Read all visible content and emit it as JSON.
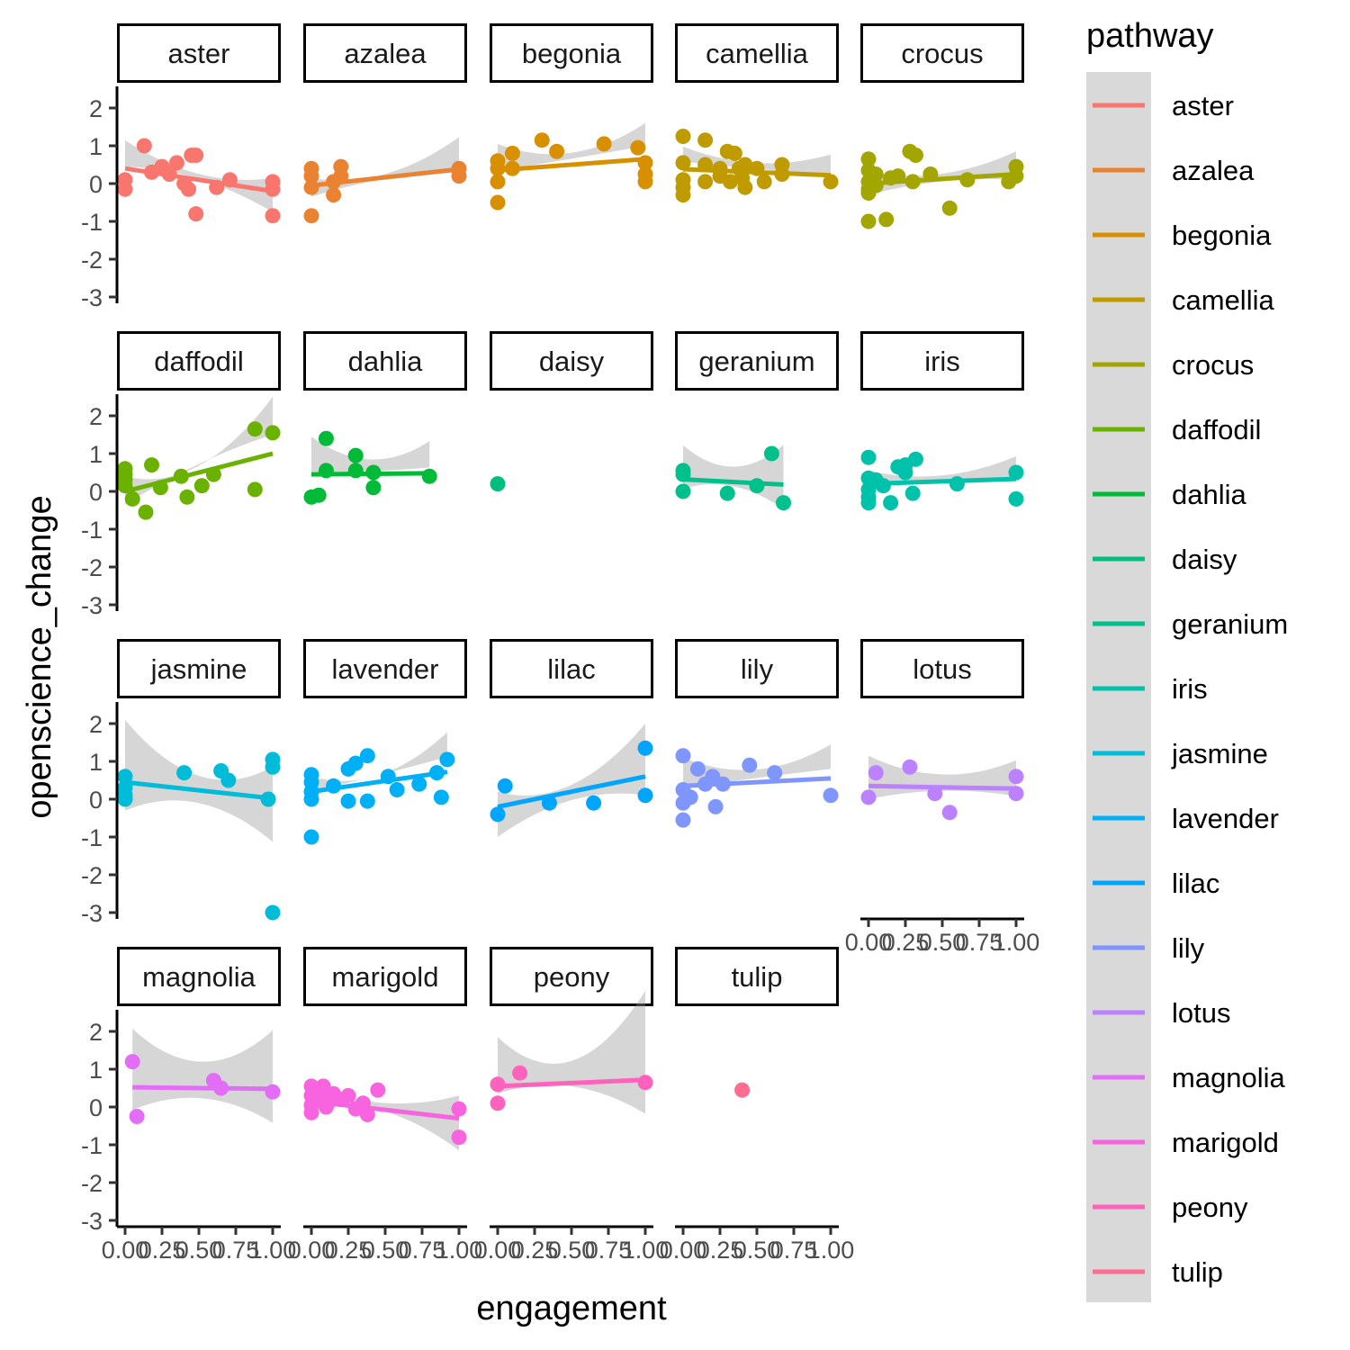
{
  "chart_data": {
    "type": "scatter",
    "facet_by": "pathway",
    "xlabel": "engagement",
    "ylabel": "openscience_change",
    "xlim": [
      0,
      1
    ],
    "ylim": [
      -3,
      2.5
    ],
    "x_ticks": [
      "0.00",
      "0.25",
      "0.50",
      "0.75",
      "1.00"
    ],
    "y_ticks": [
      "-3",
      "-2",
      "-1",
      "0",
      "1",
      "2"
    ],
    "grid": false,
    "smooth": "lm with confidence band",
    "legend": {
      "title": "pathway",
      "position": "right"
    },
    "panels": [
      {
        "name": "aster",
        "color": "#F8766D",
        "points": [
          [
            0,
            0.1
          ],
          [
            0,
            -0.15
          ],
          [
            0.13,
            1.0
          ],
          [
            0.18,
            0.3
          ],
          [
            0.25,
            0.45
          ],
          [
            0.3,
            0.25
          ],
          [
            0.35,
            0.55
          ],
          [
            0.4,
            0.0
          ],
          [
            0.43,
            -0.15
          ],
          [
            0.45,
            0.75
          ],
          [
            0.48,
            0.75
          ],
          [
            0.48,
            -0.8
          ],
          [
            0.62,
            -0.1
          ],
          [
            0.71,
            0.1
          ],
          [
            1.0,
            0.05
          ],
          [
            1.0,
            -0.15
          ],
          [
            1.0,
            -0.85
          ]
        ],
        "fit": [
          0.4,
          -0.2
        ],
        "band": [
          [
            0.75,
            0.05
          ],
          [
            0.35,
            -0.55
          ]
        ]
      },
      {
        "name": "azalea",
        "color": "#EA8331",
        "points": [
          [
            0,
            0.4
          ],
          [
            0,
            0.2
          ],
          [
            0,
            -0.1
          ],
          [
            0,
            -0.85
          ],
          [
            0.15,
            0.05
          ],
          [
            0.15,
            -0.3
          ],
          [
            0.2,
            0.2
          ],
          [
            0.2,
            0.45
          ],
          [
            1.0,
            0.4
          ],
          [
            1.0,
            0.2
          ]
        ],
        "fit": [
          -0.05,
          0.38
        ],
        "band": [
          [
            0.2,
            -0.3
          ],
          [
            0.85,
            -0.1
          ]
        ]
      },
      {
        "name": "begonia",
        "color": "#D89000",
        "points": [
          [
            0,
            0.6
          ],
          [
            0,
            0.4
          ],
          [
            0,
            0.05
          ],
          [
            0,
            -0.5
          ],
          [
            0.1,
            0.8
          ],
          [
            0.1,
            0.4
          ],
          [
            0.3,
            1.15
          ],
          [
            0.4,
            0.85
          ],
          [
            0.72,
            1.05
          ],
          [
            0.95,
            0.95
          ],
          [
            1.0,
            0.55
          ],
          [
            1.0,
            0.25
          ],
          [
            1.0,
            0.05
          ]
        ],
        "fit": [
          0.35,
          0.65
        ],
        "band": [
          [
            0.7,
            0.0
          ],
          [
            0.95,
            0.35
          ]
        ]
      },
      {
        "name": "camellia",
        "color": "#C09B00",
        "points": [
          [
            0,
            1.25
          ],
          [
            0,
            0.55
          ],
          [
            0,
            0.1
          ],
          [
            0,
            -0.1
          ],
          [
            0,
            -0.3
          ],
          [
            0.15,
            1.15
          ],
          [
            0.15,
            0.5
          ],
          [
            0.15,
            0.05
          ],
          [
            0.25,
            0.4
          ],
          [
            0.25,
            0.2
          ],
          [
            0.3,
            0.85
          ],
          [
            0.32,
            0.05
          ],
          [
            0.35,
            0.8
          ],
          [
            0.38,
            0.4
          ],
          [
            0.4,
            0.15
          ],
          [
            0.42,
            0.5
          ],
          [
            0.42,
            -0.1
          ],
          [
            0.5,
            0.4
          ],
          [
            0.55,
            0.05
          ],
          [
            0.67,
            0.5
          ],
          [
            0.67,
            0.25
          ],
          [
            1.0,
            0.05
          ]
        ],
        "fit": [
          0.38,
          0.22
        ],
        "band": [
          [
            0.6,
            0.2
          ],
          [
            0.55,
            0.0
          ]
        ]
      },
      {
        "name": "crocus",
        "color": "#A3A500",
        "points": [
          [
            0,
            0.65
          ],
          [
            0,
            0.35
          ],
          [
            0,
            0.05
          ],
          [
            0,
            -0.15
          ],
          [
            0,
            -0.25
          ],
          [
            0,
            -1.0
          ],
          [
            0.05,
            -0.05
          ],
          [
            0.05,
            0.25
          ],
          [
            0.12,
            -0.95
          ],
          [
            0.15,
            0.15
          ],
          [
            0.2,
            0.2
          ],
          [
            0.28,
            0.85
          ],
          [
            0.32,
            0.75
          ],
          [
            0.3,
            0.05
          ],
          [
            0.42,
            0.25
          ],
          [
            0.55,
            -0.65
          ],
          [
            0.67,
            0.1
          ],
          [
            0.95,
            0.05
          ],
          [
            1.0,
            0.45
          ],
          [
            1.0,
            0.2
          ]
        ],
        "fit": [
          0.0,
          0.25
        ],
        "band": [
          [
            0.3,
            -0.3
          ],
          [
            0.6,
            -0.15
          ]
        ]
      },
      {
        "name": "daffodil",
        "color": "#6BB100",
        "points": [
          [
            0,
            0.6
          ],
          [
            0,
            0.45
          ],
          [
            0,
            0.3
          ],
          [
            0,
            0.15
          ],
          [
            0.05,
            -0.2
          ],
          [
            0.14,
            -0.55
          ],
          [
            0.18,
            0.7
          ],
          [
            0.24,
            0.1
          ],
          [
            0.38,
            0.4
          ],
          [
            0.42,
            -0.15
          ],
          [
            0.52,
            0.15
          ],
          [
            0.6,
            0.45
          ],
          [
            0.88,
            1.65
          ],
          [
            0.88,
            0.05
          ],
          [
            1.0,
            1.55
          ]
        ],
        "fit": [
          0.0,
          1.0
        ],
        "band": [
          [
            0.4,
            -0.35
          ],
          [
            1.5,
            0.5
          ]
        ]
      },
      {
        "name": "dahlia",
        "color": "#00BA38",
        "points": [
          [
            0,
            -0.15
          ],
          [
            0.05,
            -0.1
          ],
          [
            0.1,
            1.4
          ],
          [
            0.1,
            0.55
          ],
          [
            0.3,
            0.95
          ],
          [
            0.3,
            0.55
          ],
          [
            0.42,
            0.1
          ],
          [
            0.42,
            0.5
          ],
          [
            0.8,
            0.4
          ]
        ],
        "fit": [
          0.45,
          0.48
        ],
        "band": [
          [
            1.0,
            0.05
          ],
          [
            0.85,
            0.15
          ]
        ],
        "x_end": 0.8
      },
      {
        "name": "daisy",
        "color": "#00BF7D",
        "points": [
          [
            0,
            0.2
          ]
        ]
      },
      {
        "name": "geranium",
        "color": "#00C08B",
        "points": [
          [
            0,
            0.55
          ],
          [
            0,
            0.45
          ],
          [
            0,
            0.0
          ],
          [
            0.3,
            -0.05
          ],
          [
            0.5,
            0.15
          ],
          [
            0.6,
            1.0
          ],
          [
            0.68,
            -0.3
          ]
        ],
        "fit": [
          0.32,
          0.18
        ],
        "band": [
          [
            0.9,
            -0.25
          ],
          [
            1.05,
            -0.65
          ]
        ],
        "x_end": 0.68
      },
      {
        "name": "iris",
        "color": "#00C1AA",
        "points": [
          [
            0,
            0.9
          ],
          [
            0,
            0.35
          ],
          [
            0,
            0.05
          ],
          [
            0,
            -0.15
          ],
          [
            0,
            -0.3
          ],
          [
            0.05,
            0.3
          ],
          [
            0.1,
            0.15
          ],
          [
            0.15,
            -0.3
          ],
          [
            0.2,
            0.65
          ],
          [
            0.25,
            0.7
          ],
          [
            0.25,
            0.5
          ],
          [
            0.3,
            -0.05
          ],
          [
            0.32,
            0.85
          ],
          [
            0.6,
            0.2
          ],
          [
            1.0,
            0.5
          ],
          [
            1.0,
            -0.2
          ]
        ],
        "fit": [
          0.2,
          0.33
        ],
        "band": [
          [
            0.35,
            0.05
          ],
          [
            0.6,
            0.05
          ]
        ]
      },
      {
        "name": "jasmine",
        "color": "#00BCD8",
        "points": [
          [
            0,
            0.6
          ],
          [
            0,
            0.3
          ],
          [
            0,
            0.1
          ],
          [
            0,
            0.0
          ],
          [
            0.4,
            0.7
          ],
          [
            0.65,
            0.75
          ],
          [
            0.7,
            0.5
          ],
          [
            0.97,
            0.0
          ],
          [
            1.0,
            1.05
          ],
          [
            1.0,
            0.85
          ],
          [
            1.0,
            -3.0
          ]
        ],
        "fit": [
          0.45,
          0.02
        ],
        "band": [
          [
            1.65,
            -0.75
          ],
          [
            0.85,
            -1.15
          ]
        ]
      },
      {
        "name": "lavender",
        "color": "#00B0F6",
        "points": [
          [
            0,
            0.65
          ],
          [
            0,
            0.45
          ],
          [
            0,
            0.2
          ],
          [
            0,
            0.0
          ],
          [
            0,
            -1.0
          ],
          [
            0.15,
            0.35
          ],
          [
            0.25,
            0.8
          ],
          [
            0.25,
            -0.05
          ],
          [
            0.3,
            0.95
          ],
          [
            0.38,
            1.15
          ],
          [
            0.38,
            -0.05
          ],
          [
            0.52,
            0.6
          ],
          [
            0.58,
            0.25
          ],
          [
            0.73,
            0.4
          ],
          [
            0.85,
            0.7
          ],
          [
            0.88,
            0.05
          ],
          [
            0.92,
            1.05
          ]
        ],
        "fit": [
          0.2,
          0.72
        ],
        "band": [
          [
            0.4,
            0.0
          ],
          [
            1.05,
            0.4
          ]
        ],
        "x_end": 0.92
      },
      {
        "name": "lilac",
        "color": "#00A5FF",
        "points": [
          [
            0,
            -0.4
          ],
          [
            0.05,
            0.35
          ],
          [
            0.35,
            -0.1
          ],
          [
            0.65,
            -0.1
          ],
          [
            1.0,
            1.35
          ],
          [
            1.0,
            0.1
          ]
        ],
        "fit": [
          -0.2,
          0.6
        ],
        "band": [
          [
            0.4,
            -0.8
          ],
          [
            1.4,
            -0.5
          ]
        ]
      },
      {
        "name": "lily",
        "color": "#7F96FF",
        "points": [
          [
            0,
            1.15
          ],
          [
            0,
            0.25
          ],
          [
            0,
            -0.1
          ],
          [
            0,
            -0.55
          ],
          [
            0.05,
            0.05
          ],
          [
            0.1,
            0.8
          ],
          [
            0.15,
            0.4
          ],
          [
            0.2,
            0.6
          ],
          [
            0.22,
            -0.2
          ],
          [
            0.27,
            0.4
          ],
          [
            0.45,
            0.9
          ],
          [
            0.62,
            0.7
          ],
          [
            1.0,
            0.1
          ]
        ],
        "fit": [
          0.35,
          0.55
        ],
        "band": [
          [
            0.75,
            -0.05
          ],
          [
            0.9,
            0.25
          ]
        ]
      },
      {
        "name": "lotus",
        "color": "#BC81FF",
        "points": [
          [
            0,
            0.05
          ],
          [
            0.05,
            0.7
          ],
          [
            0.28,
            0.85
          ],
          [
            0.45,
            0.15
          ],
          [
            0.55,
            -0.35
          ],
          [
            1.0,
            0.6
          ],
          [
            1.0,
            0.15
          ]
        ],
        "fit": [
          0.35,
          0.28
        ],
        "band": [
          [
            0.8,
            -0.35
          ],
          [
            0.75,
            -0.2
          ]
        ]
      },
      {
        "name": "magnolia",
        "color": "#E26EF7",
        "points": [
          [
            0.05,
            1.2
          ],
          [
            0.08,
            -0.25
          ],
          [
            0.6,
            0.7
          ],
          [
            0.65,
            0.5
          ],
          [
            1.0,
            0.4
          ]
        ],
        "fit": [
          0.52,
          0.48
        ],
        "band": [
          [
            1.55,
            -0.6
          ],
          [
            1.55,
            -0.9
          ]
        ],
        "x_start": 0.05
      },
      {
        "name": "marigold",
        "color": "#F863DF",
        "points": [
          [
            0,
            0.55
          ],
          [
            0,
            0.3
          ],
          [
            0,
            0.05
          ],
          [
            0,
            -0.15
          ],
          [
            0.05,
            0.35
          ],
          [
            0.08,
            0.55
          ],
          [
            0.1,
            0.0
          ],
          [
            0.12,
            0.15
          ],
          [
            0.15,
            0.35
          ],
          [
            0.2,
            0.2
          ],
          [
            0.25,
            0.3
          ],
          [
            0.3,
            -0.05
          ],
          [
            0.35,
            0.1
          ],
          [
            0.38,
            -0.2
          ],
          [
            0.45,
            0.45
          ],
          [
            1.0,
            -0.05
          ],
          [
            1.0,
            -0.8
          ]
        ],
        "fit": [
          0.15,
          -0.3
        ],
        "band": [
          [
            0.4,
            -0.1
          ],
          [
            0.6,
            -0.85
          ]
        ]
      },
      {
        "name": "peony",
        "color": "#FF62BC",
        "points": [
          [
            0,
            0.6
          ],
          [
            0,
            0.1
          ],
          [
            0.15,
            0.9
          ],
          [
            1.0,
            0.65
          ]
        ],
        "fit": [
          0.55,
          0.72
        ],
        "band": [
          [
            1.3,
            -0.2
          ],
          [
            2.35,
            -0.9
          ]
        ]
      },
      {
        "name": "tulip",
        "color": "#FF6C91",
        "points": [
          [
            0.4,
            0.45
          ]
        ]
      }
    ]
  }
}
